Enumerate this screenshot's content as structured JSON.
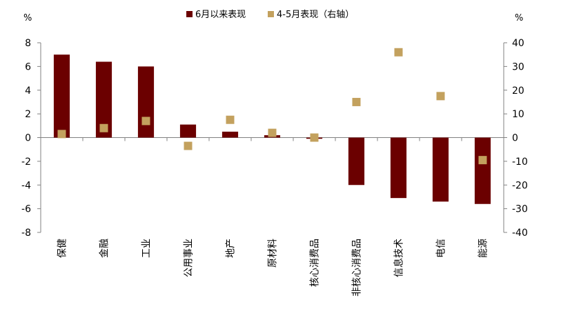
{
  "chart_data": {
    "type": "bar",
    "title": "",
    "unit_left": "%",
    "unit_right": "%",
    "categories": [
      "保健",
      "金融",
      "工业",
      "公用事业",
      "地产",
      "原材料",
      "核心消费品",
      "非核心消费品",
      "信息技术",
      "电信",
      "能源"
    ],
    "series": [
      {
        "name": "6月以来表现",
        "type": "bar",
        "axis": "left",
        "color": "#6B0000",
        "values": [
          7.0,
          6.4,
          6.0,
          1.1,
          0.5,
          0.2,
          -0.1,
          -4.0,
          -5.1,
          -5.4,
          -5.6
        ]
      },
      {
        "name": "4-5月表现（右轴）",
        "type": "scatter",
        "axis": "right",
        "color": "#C3A15E",
        "values": [
          1.5,
          4.0,
          7.0,
          -3.5,
          7.5,
          2.0,
          0.0,
          15.0,
          36.0,
          17.5,
          -9.5
        ]
      }
    ],
    "ylim_left": [
      -8,
      8
    ],
    "yticks_left": [
      -8,
      -6,
      -4,
      -2,
      0,
      2,
      4,
      6,
      8
    ],
    "ylim_right": [
      -40,
      40
    ],
    "yticks_right": [
      -40,
      -30,
      -20,
      -10,
      0,
      10,
      20,
      30,
      40
    ],
    "legend_position": "top-center",
    "grid": false
  }
}
